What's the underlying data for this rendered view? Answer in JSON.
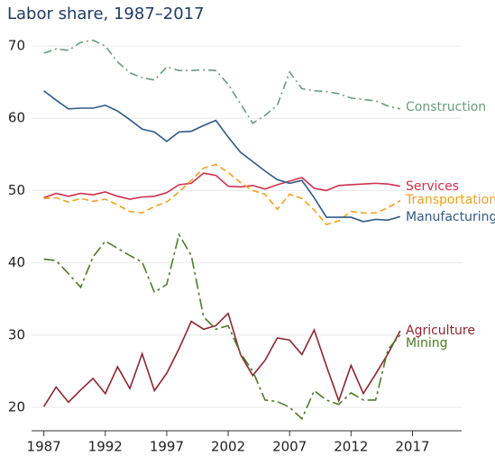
{
  "chart_data": {
    "type": "line",
    "title": "Labor share, 1987–2017",
    "x": [
      1987,
      1988,
      1989,
      1990,
      1991,
      1992,
      1993,
      1994,
      1995,
      1996,
      1997,
      1998,
      1999,
      2000,
      2001,
      2002,
      2003,
      2004,
      2005,
      2006,
      2007,
      2008,
      2009,
      2010,
      2011,
      2012,
      2013,
      2014,
      2015,
      2016
    ],
    "series": [
      {
        "name": "Construction",
        "color": "#6b9b7e",
        "values": [
          69.0,
          69.6,
          69.4,
          70.5,
          70.8,
          70.0,
          67.8,
          66.3,
          65.6,
          65.3,
          67.1,
          66.6,
          66.6,
          66.7,
          66.6,
          64.7,
          62.0,
          59.3,
          60.4,
          61.8,
          66.4,
          64.1,
          63.8,
          63.7,
          63.4,
          62.8,
          62.6,
          62.4,
          61.7,
          61.3
        ]
      },
      {
        "name": "Services",
        "color": "#d0304f",
        "values": [
          49.0,
          49.6,
          49.2,
          49.6,
          49.4,
          49.8,
          49.2,
          48.8,
          49.1,
          49.2,
          49.7,
          50.8,
          51.0,
          52.4,
          52.1,
          50.6,
          50.5,
          50.7,
          50.2,
          50.8,
          51.3,
          51.8,
          50.3,
          50.0,
          50.7,
          50.8,
          50.9,
          51.0,
          50.9,
          50.6
        ]
      },
      {
        "name": "Transportation",
        "color": "#f0a020",
        "values": [
          48.9,
          49.0,
          48.4,
          48.9,
          48.5,
          48.8,
          48.0,
          47.1,
          46.9,
          47.8,
          48.4,
          49.8,
          51.4,
          53.1,
          53.6,
          52.5,
          51.1,
          50.0,
          49.5,
          47.4,
          49.5,
          48.9,
          47.3,
          45.3,
          45.8,
          47.1,
          46.9,
          46.9,
          47.6,
          48.6
        ]
      },
      {
        "name": "Manufacturing",
        "color": "#2f5a87",
        "values": [
          63.8,
          62.5,
          61.3,
          61.4,
          61.4,
          61.8,
          61.0,
          59.8,
          58.5,
          58.1,
          56.8,
          58.1,
          58.2,
          59.0,
          59.7,
          57.4,
          55.3,
          54.0,
          52.7,
          51.5,
          51.0,
          51.4,
          49.0,
          46.3,
          46.3,
          46.3,
          45.7,
          46.0,
          45.9,
          46.4
        ]
      },
      {
        "name": "Agriculture",
        "color": "#8b2631",
        "values": [
          20.1,
          22.8,
          20.7,
          22.4,
          24.0,
          21.9,
          25.6,
          22.6,
          27.4,
          22.3,
          24.7,
          28.1,
          31.9,
          30.8,
          31.3,
          33.0,
          27.3,
          24.4,
          26.5,
          29.6,
          29.3,
          27.3,
          30.7,
          25.7,
          20.9,
          25.8,
          21.9,
          24.6,
          27.4,
          30.6
        ]
      },
      {
        "name": "Mining",
        "color": "#4f7a28",
        "values": [
          40.5,
          40.3,
          38.5,
          36.6,
          40.8,
          43.0,
          42.0,
          41.0,
          40.1,
          35.9,
          37.0,
          43.9,
          41.0,
          32.5,
          30.8,
          31.3,
          27.5,
          25.0,
          21.0,
          20.8,
          20.0,
          18.4,
          22.3,
          21.0,
          20.4,
          22.0,
          21.0,
          21.0,
          28.0,
          30.0
        ]
      }
    ],
    "xlim": [
      1986,
      2021
    ],
    "xticks": [
      1987,
      1992,
      1997,
      2002,
      2007,
      2012,
      2017
    ],
    "ylim": [
      17,
      72
    ],
    "yticks": [
      20,
      30,
      40,
      50,
      60,
      70
    ],
    "grid": true
  }
}
